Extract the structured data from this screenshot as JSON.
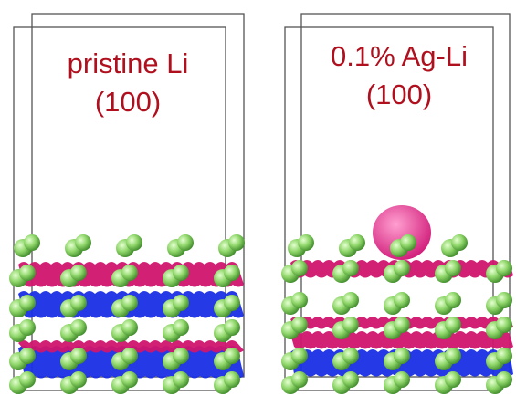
{
  "panels": [
    {
      "title": "pristine Li",
      "facet": "(100)"
    },
    {
      "title": "0.1% Ag-Li",
      "facet": "(100)"
    }
  ]
}
